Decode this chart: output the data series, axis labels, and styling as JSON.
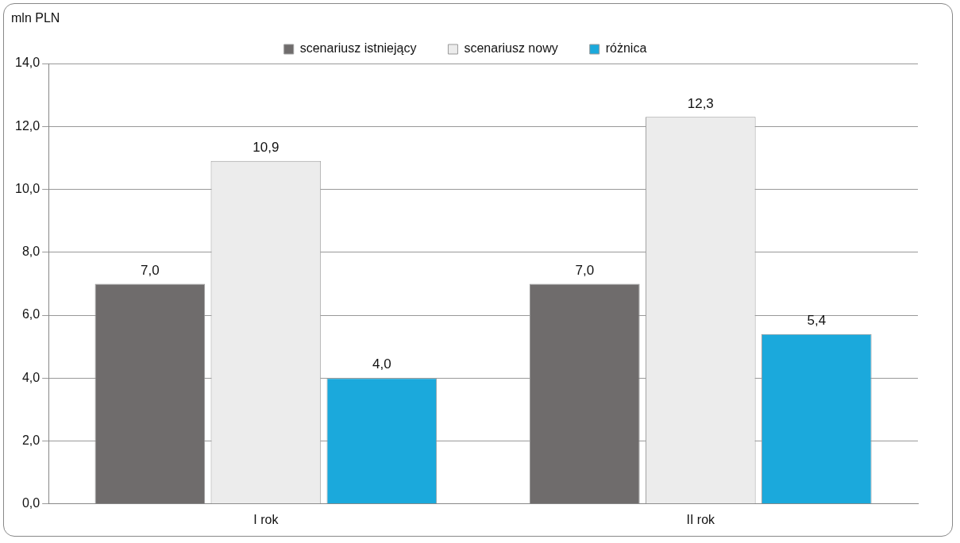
{
  "chart_data": {
    "type": "bar",
    "ylabel": "mln PLN",
    "categories": [
      "I rok",
      "II rok"
    ],
    "series": [
      {
        "name": "scenariusz istniejący",
        "color": "#6f6c6c",
        "values": [
          7.0,
          7.0
        ],
        "value_labels": [
          "7,0",
          "7,0"
        ]
      },
      {
        "name": "scenariusz nowy",
        "color": "#ececec",
        "values": [
          10.9,
          12.3
        ],
        "value_labels": [
          "10,9",
          "12,3"
        ]
      },
      {
        "name": "różnica",
        "color": "#1ba9dc",
        "values": [
          4.0,
          5.4
        ],
        "value_labels": [
          "4,0",
          "5,4"
        ]
      }
    ],
    "ylim": [
      0,
      14
    ],
    "yticks": [
      {
        "value": 0,
        "label": "0,0"
      },
      {
        "value": 2,
        "label": "2,0"
      },
      {
        "value": 4,
        "label": "4,0"
      },
      {
        "value": 6,
        "label": "6,0"
      },
      {
        "value": 8,
        "label": "8,0"
      },
      {
        "value": 10,
        "label": "10,0"
      },
      {
        "value": 12,
        "label": "12,0"
      },
      {
        "value": 14,
        "label": "14,0"
      }
    ],
    "grid": "y",
    "legend": "top"
  }
}
